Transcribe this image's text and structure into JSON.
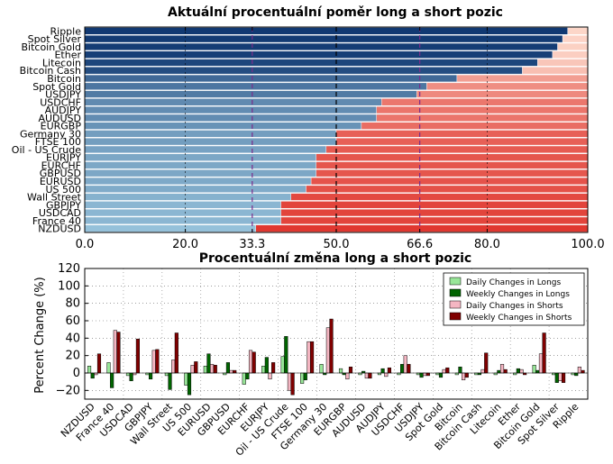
{
  "chart_data": [
    {
      "type": "bar",
      "orientation": "horizontal",
      "stacked": true,
      "title": "Aktuální procentuální poměr long a short pozic",
      "categories": [
        "Ripple",
        "Spot Silver",
        "Bitcoin Gold",
        "Ether",
        "Litecoin",
        "Bitcoin Cash",
        "Bitcoin",
        "Spot Gold",
        "USDJPY",
        "USDCHF",
        "AUDJPY",
        "AUDUSD",
        "EURGBP",
        "Germany 30",
        "FTSE 100",
        "Oil - US Crude",
        "EURJPY",
        "EURCHF",
        "GBPUSD",
        "EURUSD",
        "US 500",
        "Wall Street",
        "GBPJPY",
        "USDCAD",
        "France 40",
        "NZDUSD"
      ],
      "long_percent": [
        96,
        95,
        94,
        93,
        90,
        87,
        74,
        68,
        66,
        59,
        58,
        58,
        55,
        50,
        50,
        48,
        46,
        46,
        46,
        45,
        44,
        41,
        39,
        39,
        39,
        34
      ],
      "xlim": [
        0,
        100
      ],
      "xticks": [
        "0.0",
        "20.0",
        "33.3",
        "50.0",
        "66.6",
        "80.0",
        "100.0"
      ],
      "reference_lines": [
        33.3,
        50.0,
        66.6
      ],
      "grid": true
    },
    {
      "type": "bar",
      "title": "Procentuální změna long a short pozic",
      "ylabel": "Percent Change (%)",
      "ylim": [
        -30,
        120
      ],
      "yticks": [
        "120",
        "100",
        "80",
        "60",
        "40",
        "20",
        "0",
        "−20"
      ],
      "categories": [
        "NZDUSD",
        "France 40",
        "USDCAD",
        "GBPJPY",
        "Wall Street",
        "US 500",
        "EURUSD",
        "GBPUSD",
        "EURCHF",
        "EURJPY",
        "Oil - US Crude",
        "FTSE 100",
        "Germany 30",
        "EURGBP",
        "AUDUSD",
        "AUDJPY",
        "USDCHF",
        "USDJPY",
        "Spot Gold",
        "Bitcoin",
        "Bitcoin Cash",
        "Litecoin",
        "Ether",
        "Bitcoin Gold",
        "Spot Silver",
        "Ripple"
      ],
      "series": [
        {
          "name": "Daily Changes in Longs",
          "color": "#98e698",
          "values": [
            8,
            12,
            -3,
            -2,
            -3,
            -14,
            8,
            -2,
            -13,
            8,
            19,
            -12,
            10,
            5,
            -2,
            -2,
            -2,
            -2,
            -2,
            -2,
            -2,
            -2,
            -2,
            9,
            -2,
            -2
          ]
        },
        {
          "name": "Weekly Changes in Longs",
          "color": "#006400",
          "values": [
            -6,
            -17,
            -9,
            -7,
            -19,
            -25,
            22,
            12,
            -7,
            18,
            42,
            -8,
            -2,
            -2,
            2,
            5,
            10,
            -5,
            -5,
            7,
            -2,
            3,
            5,
            3,
            -11,
            -3
          ]
        },
        {
          "name": "Daily Changes in Shorts",
          "color": "#f4b6c2",
          "values": [
            -2,
            49,
            -2,
            26,
            15,
            9,
            10,
            3,
            26,
            -7,
            -20,
            36,
            52,
            -7,
            -6,
            -4,
            20,
            -3,
            4,
            -8,
            4,
            10,
            4,
            22,
            -9,
            7
          ]
        },
        {
          "name": "Weekly Changes in Shorts",
          "color": "#800000",
          "values": [
            22,
            47,
            39,
            27,
            46,
            13,
            9,
            3,
            24,
            12,
            -25,
            36,
            62,
            7,
            -6,
            6,
            10,
            -3,
            6,
            -5,
            23,
            4,
            -2,
            46,
            -11,
            3
          ]
        }
      ],
      "legend": "top-right",
      "grid": true
    }
  ]
}
